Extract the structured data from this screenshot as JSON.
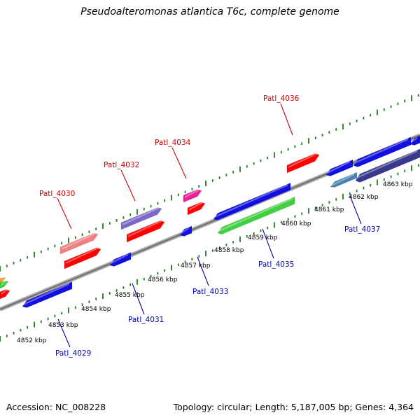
{
  "title": "Pseudoalteromonas atlantica T6c, complete genome",
  "footer": {
    "accession": "Accession: NC_008228",
    "summary": "Topology: circular; Length: 5,187,005 bp; Genes: 4,364"
  },
  "colors": {
    "backbone": "#888888",
    "tick": "#1e7a1e",
    "forward_label": "#cc0000",
    "reverse_label": "#0000b0",
    "red": "#ff0000",
    "pink": "#f08080",
    "purple": "#7b68c8",
    "magenta": "#e8209a",
    "blue": "#1010e0",
    "green": "#40d040",
    "navy": "#3a3a8c",
    "steelblue": "#4682b4"
  },
  "tick_labels": [
    "4852 kbp",
    "4853 kbp",
    "4854 kbp",
    "4855 kbp",
    "4856 kbp",
    "4857 kbp",
    "4858 kbp",
    "4859 kbp",
    "4860 kbp",
    "4861 kbp",
    "4862 kbp",
    "4863 kbp"
  ],
  "forward_labels": [
    "Patl_4030",
    "Patl_4032",
    "Patl_4034",
    "Patl_4036"
  ],
  "reverse_labels": [
    "Patl_4029",
    "Patl_4031",
    "Patl_4033",
    "Patl_4035",
    "Patl_4037"
  ]
}
